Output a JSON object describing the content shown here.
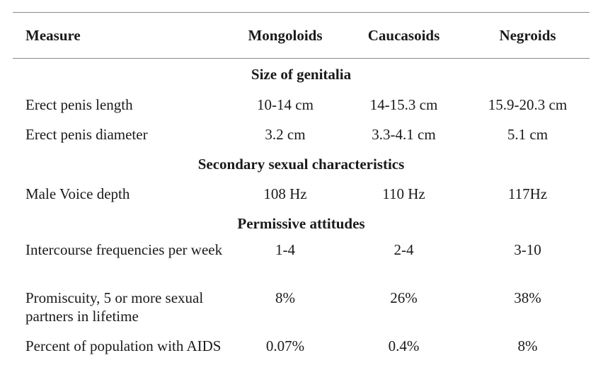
{
  "table": {
    "headers": [
      "Measure",
      "Mongoloids",
      "Caucasoids",
      "Negroids"
    ],
    "sections": [
      {
        "title": "Size of genitalia",
        "rows": [
          {
            "measure": "Erect penis length",
            "mongoloids": "10-14 cm",
            "caucasoids": "14-15.3 cm",
            "negroids": "15.9-20.3 cm"
          },
          {
            "measure": "Erect penis diameter",
            "mongoloids": "3.2 cm",
            "caucasoids": "3.3-4.1 cm",
            "negroids": "5.1 cm"
          }
        ]
      },
      {
        "title": "Secondary sexual characteristics",
        "rows": [
          {
            "measure": "Male Voice depth",
            "mongoloids": "108 Hz",
            "caucasoids": "110 Hz",
            "negroids": "117Hz"
          }
        ]
      },
      {
        "title": "Permissive attitudes",
        "rows": [
          {
            "measure": "Intercourse frequencies per week",
            "mongoloids": "1-4",
            "caucasoids": "2-4",
            "negroids": "3-10"
          },
          {
            "measure": "Promiscuity, 5 or more sexual partners in lifetime",
            "mongoloids": "8%",
            "caucasoids": "26%",
            "negroids": "38%"
          },
          {
            "measure": "Percent of population with AIDS",
            "mongoloids": "0.07%",
            "caucasoids": "0.4%",
            "negroids": "8%"
          }
        ]
      }
    ]
  }
}
